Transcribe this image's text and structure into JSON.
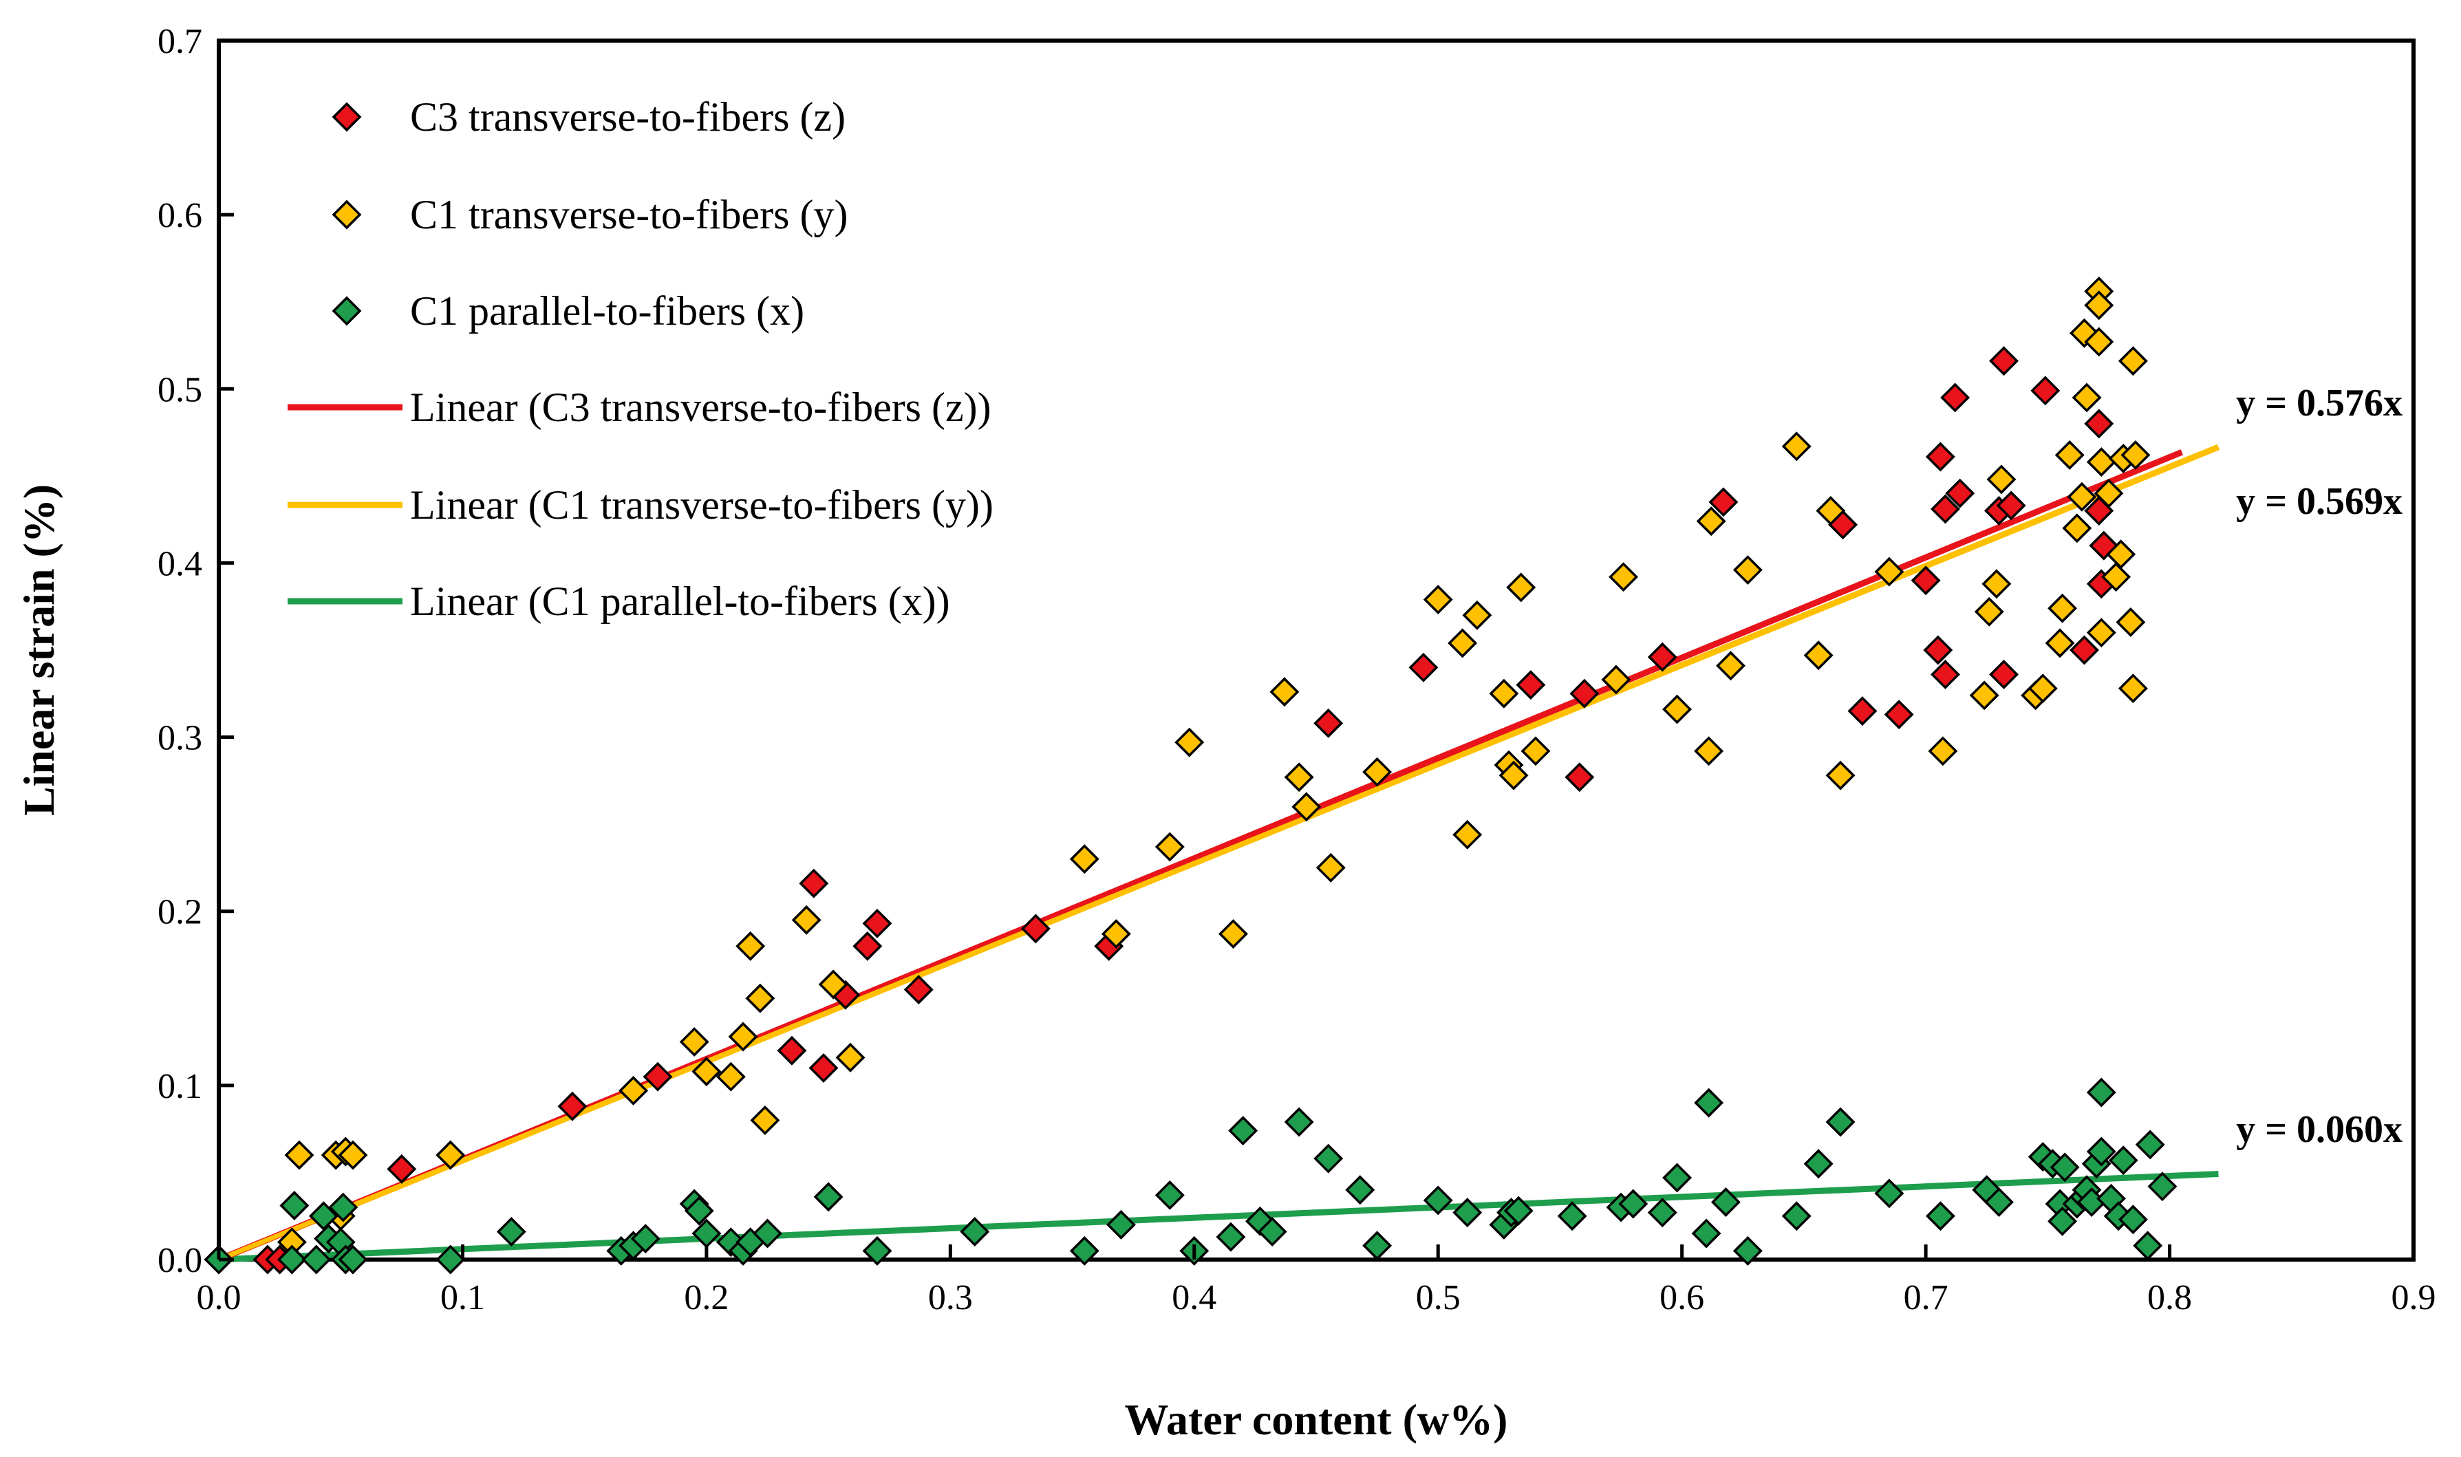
{
  "chart_data": {
    "type": "scatter",
    "title": "",
    "xlabel": "Water content (w%)",
    "ylabel": "Linear strain (%)",
    "xlim": [
      0,
      0.9
    ],
    "ylim": [
      0,
      0.7
    ],
    "xticks": [
      0.0,
      0.1,
      0.2,
      0.3,
      0.4,
      0.5,
      0.6,
      0.7,
      0.8,
      0.9
    ],
    "yticks": [
      0.0,
      0.1,
      0.2,
      0.3,
      0.4,
      0.5,
      0.6,
      0.7
    ],
    "xtick_labels": [
      "0.0",
      "0.1",
      "0.2",
      "0.3",
      "0.4",
      "0.5",
      "0.6",
      "0.7",
      "0.8",
      "0.9"
    ],
    "ytick_labels": [
      "0.0",
      "0.1",
      "0.2",
      "0.3",
      "0.4",
      "0.5",
      "0.6",
      "0.7"
    ],
    "legend_position": "top-left",
    "grid": false,
    "series": [
      {
        "name": "C3 transverse-to-fibers (z)",
        "color": "#e8131b",
        "marker": "diamond",
        "points": [
          [
            0.0,
            0.0
          ],
          [
            0.02,
            0.0
          ],
          [
            0.025,
            0.0
          ],
          [
            0.075,
            0.052
          ],
          [
            0.145,
            0.088
          ],
          [
            0.18,
            0.105
          ],
          [
            0.235,
            0.12
          ],
          [
            0.244,
            0.216
          ],
          [
            0.248,
            0.11
          ],
          [
            0.257,
            0.152
          ],
          [
            0.266,
            0.18
          ],
          [
            0.27,
            0.193
          ],
          [
            0.287,
            0.155
          ],
          [
            0.335,
            0.19
          ],
          [
            0.365,
            0.18
          ],
          [
            0.455,
            0.308
          ],
          [
            0.494,
            0.34
          ],
          [
            0.538,
            0.33
          ],
          [
            0.558,
            0.277
          ],
          [
            0.56,
            0.325
          ],
          [
            0.592,
            0.346
          ],
          [
            0.617,
            0.435
          ],
          [
            0.666,
            0.422
          ],
          [
            0.674,
            0.315
          ],
          [
            0.689,
            0.313
          ],
          [
            0.7,
            0.39
          ],
          [
            0.705,
            0.35
          ],
          [
            0.706,
            0.461
          ],
          [
            0.708,
            0.336
          ],
          [
            0.708,
            0.431
          ],
          [
            0.712,
            0.495
          ],
          [
            0.714,
            0.44
          ],
          [
            0.73,
            0.43
          ],
          [
            0.732,
            0.336
          ],
          [
            0.732,
            0.516
          ],
          [
            0.735,
            0.433
          ],
          [
            0.749,
            0.499
          ],
          [
            0.765,
            0.35
          ],
          [
            0.771,
            0.48
          ],
          [
            0.771,
            0.43
          ],
          [
            0.772,
            0.388
          ],
          [
            0.773,
            0.41
          ]
        ]
      },
      {
        "name": "C1 transverse-to-fibers (y)",
        "color": "#ffc000",
        "marker": "diamond",
        "points": [
          [
            0.03,
            0.01
          ],
          [
            0.033,
            0.06
          ],
          [
            0.048,
            0.06
          ],
          [
            0.05,
            0.025
          ],
          [
            0.052,
            0.062
          ],
          [
            0.055,
            0.06
          ],
          [
            0.095,
            0.06
          ],
          [
            0.17,
            0.097
          ],
          [
            0.195,
            0.125
          ],
          [
            0.2,
            0.108
          ],
          [
            0.21,
            0.105
          ],
          [
            0.215,
            0.128
          ],
          [
            0.218,
            0.18
          ],
          [
            0.222,
            0.15
          ],
          [
            0.224,
            0.08
          ],
          [
            0.241,
            0.195
          ],
          [
            0.252,
            0.158
          ],
          [
            0.259,
            0.116
          ],
          [
            0.355,
            0.23
          ],
          [
            0.368,
            0.187
          ],
          [
            0.39,
            0.237
          ],
          [
            0.398,
            0.297
          ],
          [
            0.416,
            0.187
          ],
          [
            0.437,
            0.326
          ],
          [
            0.443,
            0.277
          ],
          [
            0.446,
            0.26
          ],
          [
            0.456,
            0.225
          ],
          [
            0.475,
            0.28
          ],
          [
            0.5,
            0.379
          ],
          [
            0.51,
            0.354
          ],
          [
            0.512,
            0.244
          ],
          [
            0.516,
            0.37
          ],
          [
            0.527,
            0.325
          ],
          [
            0.529,
            0.284
          ],
          [
            0.531,
            0.278
          ],
          [
            0.534,
            0.386
          ],
          [
            0.54,
            0.292
          ],
          [
            0.573,
            0.333
          ],
          [
            0.576,
            0.392
          ],
          [
            0.598,
            0.316
          ],
          [
            0.611,
            0.292
          ],
          [
            0.612,
            0.424
          ],
          [
            0.62,
            0.341
          ],
          [
            0.627,
            0.396
          ],
          [
            0.647,
            0.467
          ],
          [
            0.656,
            0.347
          ],
          [
            0.661,
            0.43
          ],
          [
            0.665,
            0.278
          ],
          [
            0.685,
            0.395
          ],
          [
            0.707,
            0.292
          ],
          [
            0.724,
            0.324
          ],
          [
            0.726,
            0.372
          ],
          [
            0.729,
            0.388
          ],
          [
            0.731,
            0.448
          ],
          [
            0.745,
            0.324
          ],
          [
            0.748,
            0.328
          ],
          [
            0.755,
            0.354
          ],
          [
            0.756,
            0.374
          ],
          [
            0.759,
            0.462
          ],
          [
            0.762,
            0.42
          ],
          [
            0.764,
            0.438
          ],
          [
            0.765,
            0.532
          ],
          [
            0.766,
            0.495
          ],
          [
            0.771,
            0.527
          ],
          [
            0.771,
            0.556
          ],
          [
            0.771,
            0.548
          ],
          [
            0.772,
            0.458
          ],
          [
            0.772,
            0.36
          ],
          [
            0.775,
            0.44
          ],
          [
            0.778,
            0.392
          ],
          [
            0.78,
            0.405
          ],
          [
            0.781,
            0.46
          ],
          [
            0.784,
            0.366
          ],
          [
            0.785,
            0.328
          ],
          [
            0.785,
            0.516
          ],
          [
            0.786,
            0.462
          ]
        ]
      },
      {
        "name": "C1 parallel-to-fibers (x)",
        "color": "#1e9e4c",
        "marker": "diamond",
        "points": [
          [
            0.0,
            0.0
          ],
          [
            0.03,
            0.0
          ],
          [
            0.031,
            0.031
          ],
          [
            0.04,
            0.0
          ],
          [
            0.043,
            0.025
          ],
          [
            0.045,
            0.012
          ],
          [
            0.05,
            0.01
          ],
          [
            0.051,
            0.03
          ],
          [
            0.052,
            0.0
          ],
          [
            0.055,
            0.0
          ],
          [
            0.095,
            0.0
          ],
          [
            0.12,
            0.016
          ],
          [
            0.165,
            0.005
          ],
          [
            0.17,
            0.008
          ],
          [
            0.175,
            0.012
          ],
          [
            0.195,
            0.032
          ],
          [
            0.197,
            0.028
          ],
          [
            0.2,
            0.015
          ],
          [
            0.21,
            0.01
          ],
          [
            0.215,
            0.005
          ],
          [
            0.218,
            0.01
          ],
          [
            0.225,
            0.015
          ],
          [
            0.25,
            0.036
          ],
          [
            0.27,
            0.005
          ],
          [
            0.31,
            0.016
          ],
          [
            0.355,
            0.005
          ],
          [
            0.37,
            0.02
          ],
          [
            0.39,
            0.037
          ],
          [
            0.4,
            0.005
          ],
          [
            0.415,
            0.013
          ],
          [
            0.42,
            0.074
          ],
          [
            0.427,
            0.022
          ],
          [
            0.432,
            0.016
          ],
          [
            0.443,
            0.079
          ],
          [
            0.455,
            0.058
          ],
          [
            0.468,
            0.04
          ],
          [
            0.475,
            0.008
          ],
          [
            0.5,
            0.034
          ],
          [
            0.512,
            0.027
          ],
          [
            0.527,
            0.02
          ],
          [
            0.53,
            0.027
          ],
          [
            0.533,
            0.028
          ],
          [
            0.555,
            0.025
          ],
          [
            0.575,
            0.03
          ],
          [
            0.58,
            0.032
          ],
          [
            0.592,
            0.027
          ],
          [
            0.598,
            0.047
          ],
          [
            0.61,
            0.015
          ],
          [
            0.611,
            0.09
          ],
          [
            0.618,
            0.033
          ],
          [
            0.627,
            0.005
          ],
          [
            0.647,
            0.025
          ],
          [
            0.656,
            0.055
          ],
          [
            0.665,
            0.079
          ],
          [
            0.685,
            0.038
          ],
          [
            0.706,
            0.025
          ],
          [
            0.725,
            0.04
          ],
          [
            0.73,
            0.033
          ],
          [
            0.748,
            0.059
          ],
          [
            0.752,
            0.055
          ],
          [
            0.755,
            0.032
          ],
          [
            0.756,
            0.022
          ],
          [
            0.757,
            0.053
          ],
          [
            0.762,
            0.032
          ],
          [
            0.765,
            0.036
          ],
          [
            0.766,
            0.04
          ],
          [
            0.768,
            0.033
          ],
          [
            0.77,
            0.055
          ],
          [
            0.772,
            0.062
          ],
          [
            0.772,
            0.096
          ],
          [
            0.776,
            0.035
          ],
          [
            0.779,
            0.025
          ],
          [
            0.781,
            0.057
          ],
          [
            0.785,
            0.023
          ],
          [
            0.791,
            0.008
          ],
          [
            0.792,
            0.066
          ],
          [
            0.797,
            0.042
          ]
        ]
      }
    ],
    "trendlines": [
      {
        "name": "Linear (C3 transverse-to-fibers (z))",
        "color": "#e8131b",
        "slope": 0.576,
        "x_start": 0.0,
        "x_end": 0.805,
        "equation": "y = 0.576x"
      },
      {
        "name": "Linear (C1 transverse-to-fibers (y))",
        "color": "#ffc000",
        "slope": 0.569,
        "x_start": 0.0,
        "x_end": 0.82,
        "equation": "y = 0.569x"
      },
      {
        "name": "Linear (C1 parallel-to-fibers (x))",
        "color": "#1e9e4c",
        "slope": 0.06,
        "x_start": 0.0,
        "x_end": 0.82,
        "equation": "y = 0.060x"
      }
    ],
    "legend": [
      {
        "label": "C3 transverse-to-fibers (z)",
        "kind": "marker",
        "color": "#e8131b"
      },
      {
        "label": "C1 transverse-to-fibers (y)",
        "kind": "marker",
        "color": "#ffc000"
      },
      {
        "label": "C1 parallel-to-fibers (x)",
        "kind": "marker",
        "color": "#1e9e4c"
      },
      {
        "label": "Linear (C3 transverse-to-fibers (z))",
        "kind": "line",
        "color": "#e8131b"
      },
      {
        "label": "Linear (C1 transverse-to-fibers (y))",
        "kind": "line",
        "color": "#ffc000"
      },
      {
        "label": "Linear (C1 parallel-to-fibers (x))",
        "kind": "line",
        "color": "#1e9e4c"
      }
    ],
    "equations": [
      "y = 0.576x",
      "y = 0.569x",
      "y = 0.060x"
    ]
  }
}
